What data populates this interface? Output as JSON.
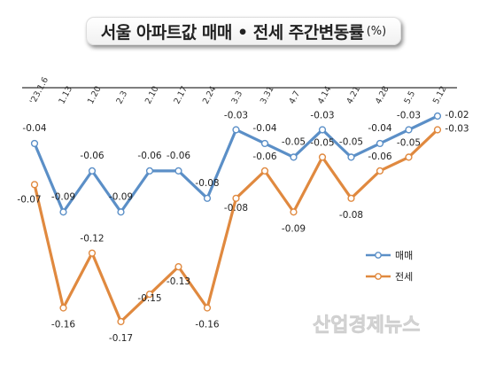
{
  "title": "서울 아파트값 매매 • 전세 주간변동률",
  "title_unit": "(%)",
  "watermark": "산업경제뉴스",
  "chart_data": {
    "type": "line",
    "title": "서울 아파트값 매매 • 전세 주간변동률",
    "unit": "(%)",
    "categories": [
      "'23.1.6",
      "1.13",
      "1.20",
      "2.3",
      "2.10",
      "2.17",
      "2.24",
      "3.3",
      "3.31",
      "4.7",
      "4.14",
      "4.21",
      "4.28",
      "5.5",
      "5.12"
    ],
    "ylim": [
      -0.18,
      -0.01
    ],
    "legend_position": "right",
    "series": [
      {
        "name": "매매",
        "color": "#5b8fc7",
        "values": [
          -0.04,
          -0.09,
          -0.06,
          -0.09,
          -0.06,
          -0.06,
          -0.08,
          -0.03,
          -0.04,
          -0.05,
          -0.03,
          -0.05,
          -0.04,
          -0.03,
          -0.02
        ],
        "labels": [
          "-0.04",
          "-0.09",
          "-0.06",
          "-0.09",
          "-0.06",
          "-0.06",
          "-0.08",
          "-0.03",
          "-0.04",
          "-0.05",
          "-0.03",
          "-0.05",
          "-0.04",
          "-0.03",
          "-0.02"
        ]
      },
      {
        "name": "전세",
        "color": "#e0893f",
        "values": [
          -0.07,
          -0.16,
          -0.12,
          -0.17,
          -0.15,
          -0.13,
          -0.16,
          -0.08,
          -0.06,
          -0.09,
          -0.05,
          -0.08,
          -0.06,
          -0.05,
          -0.03
        ],
        "labels": [
          "-0.07",
          "-0.16",
          "-0.12",
          "-0.17",
          "-0.15",
          "-0.13",
          "-0.16",
          "-0.08",
          "-0.06",
          "-0.09",
          "-0.05",
          "-0.08",
          "-0.06",
          "-0.05",
          "-0.03"
        ]
      }
    ]
  }
}
